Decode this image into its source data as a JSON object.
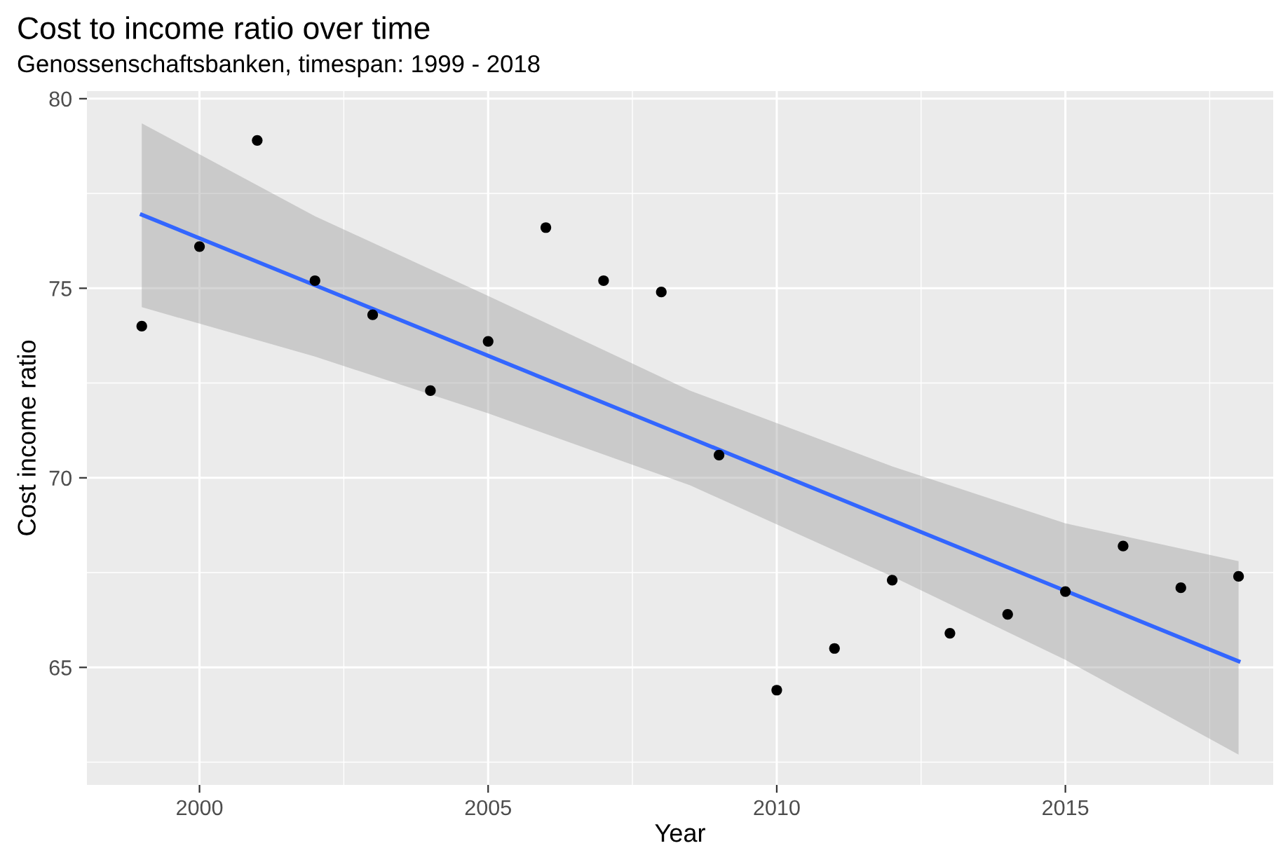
{
  "chart_data": {
    "type": "scatter",
    "title": "Cost to income ratio over time",
    "subtitle": "Genossenschaftsbanken, timespan: 1999 - 2018",
    "xlabel": "Year",
    "ylabel": "Cost income ratio",
    "series": [
      {
        "color": "#000000",
        "marker": "circle",
        "x": [
          1999,
          2000,
          2001,
          2002,
          2003,
          2004,
          2005,
          2006,
          2007,
          2008,
          2009,
          2010,
          2011,
          2012,
          2013,
          2014,
          2015,
          2016,
          2017,
          2018
        ],
        "values": [
          74.0,
          76.1,
          78.9,
          75.2,
          74.3,
          72.3,
          73.6,
          76.6,
          75.2,
          74.9,
          70.6,
          64.4,
          65.5,
          67.3,
          65.9,
          66.4,
          67.0,
          68.2,
          67.1,
          67.4
        ]
      },
      {
        "type": "line",
        "color": "#3366ff",
        "x": [
          1999,
          2002,
          2005,
          2008.5,
          2012,
          2015,
          2018
        ],
        "values": [
          76.94,
          75.08,
          73.22,
          71.05,
          68.88,
          67.02,
          65.16
        ],
        "lower": [
          74.5,
          73.2,
          71.7,
          69.8,
          67.4,
          65.2,
          62.7
        ],
        "upper": [
          79.35,
          76.9,
          74.8,
          72.3,
          70.3,
          68.8,
          67.8
        ]
      }
    ],
    "xlim": [
      1998.05,
      2018.6
    ],
    "ylim": [
      61.9,
      80.2
    ],
    "xticks": [
      2000,
      2005,
      2010,
      2015
    ],
    "yticks": [
      65,
      70,
      75,
      80
    ],
    "grid": true,
    "line_style": "solid"
  }
}
